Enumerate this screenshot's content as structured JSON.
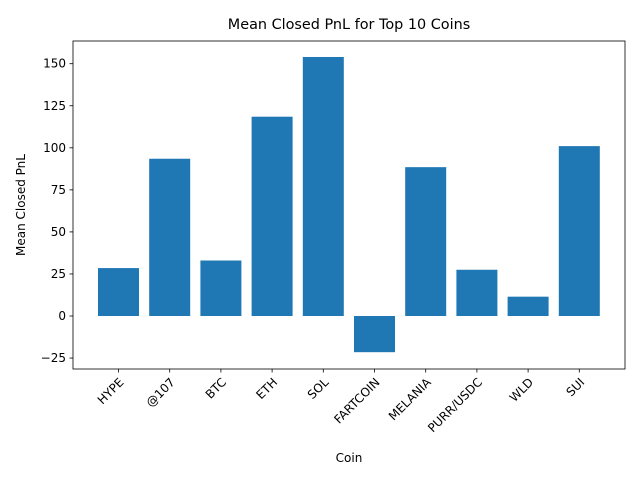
{
  "chart_data": {
    "type": "bar",
    "title": "Mean Closed PnL for Top 10 Coins",
    "xlabel": "Coin",
    "ylabel": "Mean Closed PnL",
    "categories": [
      "HYPE",
      "@107",
      "BTC",
      "ETH",
      "SOL",
      "FARTCOIN",
      "MELANIA",
      "PURR/USDC",
      "WLD",
      "SUI"
    ],
    "values": [
      28.5,
      93.5,
      33.0,
      118.5,
      154.0,
      -21.5,
      88.5,
      27.5,
      11.5,
      101.0
    ],
    "ylim": [
      -31.5,
      163.5
    ],
    "yticks": [
      -25,
      0,
      25,
      50,
      75,
      100,
      125,
      150
    ],
    "ytick_labels": [
      "−25",
      "0",
      "25",
      "50",
      "75",
      "100",
      "125",
      "150"
    ],
    "bar_color": "#1f77b4",
    "grid": false,
    "legend": "none"
  }
}
